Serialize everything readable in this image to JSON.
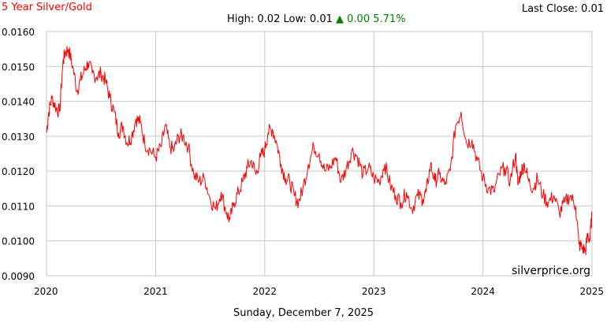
{
  "header": {
    "title": "5 Year Silver/Gold",
    "last_close_label": "Last Close:",
    "last_close_value": "0.01",
    "high_label": "High:",
    "high_value": "0.02",
    "low_label": "Low:",
    "low_value": "0.01",
    "change_arrow": "▲",
    "change_value": "0.00",
    "change_percent": "5.71%"
  },
  "footer": {
    "date": "Sunday, December 7, 2025"
  },
  "watermark": "silverprice.org",
  "colors": {
    "title": "#ff0000",
    "line": "#ff0000",
    "change": "#008000",
    "grid": "#c8c8c8"
  },
  "chart_data": {
    "type": "line",
    "title": "5 Year Silver/Gold",
    "xlabel": "",
    "ylabel": "",
    "xlim": [
      2020.0,
      2025.0
    ],
    "ylim": [
      0.009,
      0.016
    ],
    "y_ticks": [
      "0.0160",
      "0.0150",
      "0.0140",
      "0.0130",
      "0.0120",
      "0.0110",
      "0.0100",
      "0.0090"
    ],
    "y_tick_values": [
      0.016,
      0.015,
      0.014,
      0.013,
      0.012,
      0.011,
      0.01,
      0.009
    ],
    "x_ticks": [
      "2020",
      "2021",
      "2022",
      "2023",
      "2024",
      "2025"
    ],
    "x_tick_values": [
      2020,
      2021,
      2022,
      2023,
      2024,
      2025
    ],
    "grid": true,
    "series": [
      {
        "color": "#ff0000",
        "x": [
          2020.0,
          2020.02,
          2020.05,
          2020.09,
          2020.12,
          2020.15,
          2020.17,
          2020.2,
          2020.24,
          2020.28,
          2020.31,
          2020.35,
          2020.38,
          2020.42,
          2020.46,
          2020.5,
          2020.54,
          2020.58,
          2020.62,
          2020.66,
          2020.7,
          2020.74,
          2020.78,
          2020.82,
          2020.86,
          2020.9,
          2020.95,
          2021.0,
          2021.05,
          2021.09,
          2021.13,
          2021.17,
          2021.21,
          2021.25,
          2021.3,
          2021.35,
          2021.4,
          2021.45,
          2021.5,
          2021.55,
          2021.6,
          2021.65,
          2021.68,
          2021.72,
          2021.76,
          2021.8,
          2021.84,
          2021.88,
          2021.92,
          2021.96,
          2022.0,
          2022.03,
          2022.07,
          2022.11,
          2022.15,
          2022.19,
          2022.23,
          2022.27,
          2022.31,
          2022.35,
          2022.4,
          2022.45,
          2022.5,
          2022.55,
          2022.6,
          2022.65,
          2022.7,
          2022.75,
          2022.8,
          2022.85,
          2022.9,
          2022.95,
          2023.0,
          2023.05,
          2023.1,
          2023.15,
          2023.2,
          2023.25,
          2023.3,
          2023.35,
          2023.4,
          2023.45,
          2023.48,
          2023.52,
          2023.56,
          2023.6,
          2023.65,
          2023.7,
          2023.75,
          2023.8,
          2023.85,
          2023.9,
          2023.95,
          2024.0,
          2024.05,
          2024.1,
          2024.15,
          2024.2,
          2024.25,
          2024.3,
          2024.32,
          2024.35,
          2024.38,
          2024.42,
          2024.46,
          2024.5,
          2024.55,
          2024.6,
          2024.65,
          2024.7,
          2024.75,
          2024.8,
          2024.85,
          2024.88,
          2024.91,
          2024.94,
          2024.96,
          2024.98,
          2025.0
        ],
        "values": [
          0.0131,
          0.0137,
          0.0141,
          0.0138,
          0.0137,
          0.0151,
          0.0154,
          0.0155,
          0.015,
          0.0143,
          0.0146,
          0.0149,
          0.0151,
          0.0148,
          0.0147,
          0.0148,
          0.0146,
          0.0141,
          0.0137,
          0.0131,
          0.0133,
          0.0128,
          0.013,
          0.0135,
          0.0134,
          0.0128,
          0.0126,
          0.0124,
          0.0127,
          0.0133,
          0.0127,
          0.0126,
          0.013,
          0.013,
          0.0127,
          0.0119,
          0.0117,
          0.0118,
          0.0112,
          0.0109,
          0.0114,
          0.0108,
          0.0106,
          0.0111,
          0.0114,
          0.0117,
          0.0121,
          0.0123,
          0.0119,
          0.0124,
          0.0126,
          0.0131,
          0.0132,
          0.0128,
          0.0122,
          0.0118,
          0.0117,
          0.0113,
          0.0111,
          0.0115,
          0.0122,
          0.0127,
          0.0125,
          0.012,
          0.0121,
          0.0124,
          0.0117,
          0.0121,
          0.0126,
          0.0124,
          0.0119,
          0.0121,
          0.0118,
          0.0117,
          0.0122,
          0.0116,
          0.0113,
          0.0111,
          0.0114,
          0.0109,
          0.0113,
          0.0112,
          0.0114,
          0.0122,
          0.0117,
          0.0119,
          0.0116,
          0.012,
          0.0133,
          0.0137,
          0.0128,
          0.0129,
          0.0123,
          0.0118,
          0.0115,
          0.0114,
          0.0119,
          0.0121,
          0.0117,
          0.0125,
          0.0116,
          0.012,
          0.0122,
          0.0117,
          0.0115,
          0.0118,
          0.0113,
          0.0111,
          0.0113,
          0.0108,
          0.0111,
          0.0113,
          0.011,
          0.0099,
          0.0098,
          0.0097,
          0.0102,
          0.01,
          0.0108
        ]
      }
    ]
  }
}
